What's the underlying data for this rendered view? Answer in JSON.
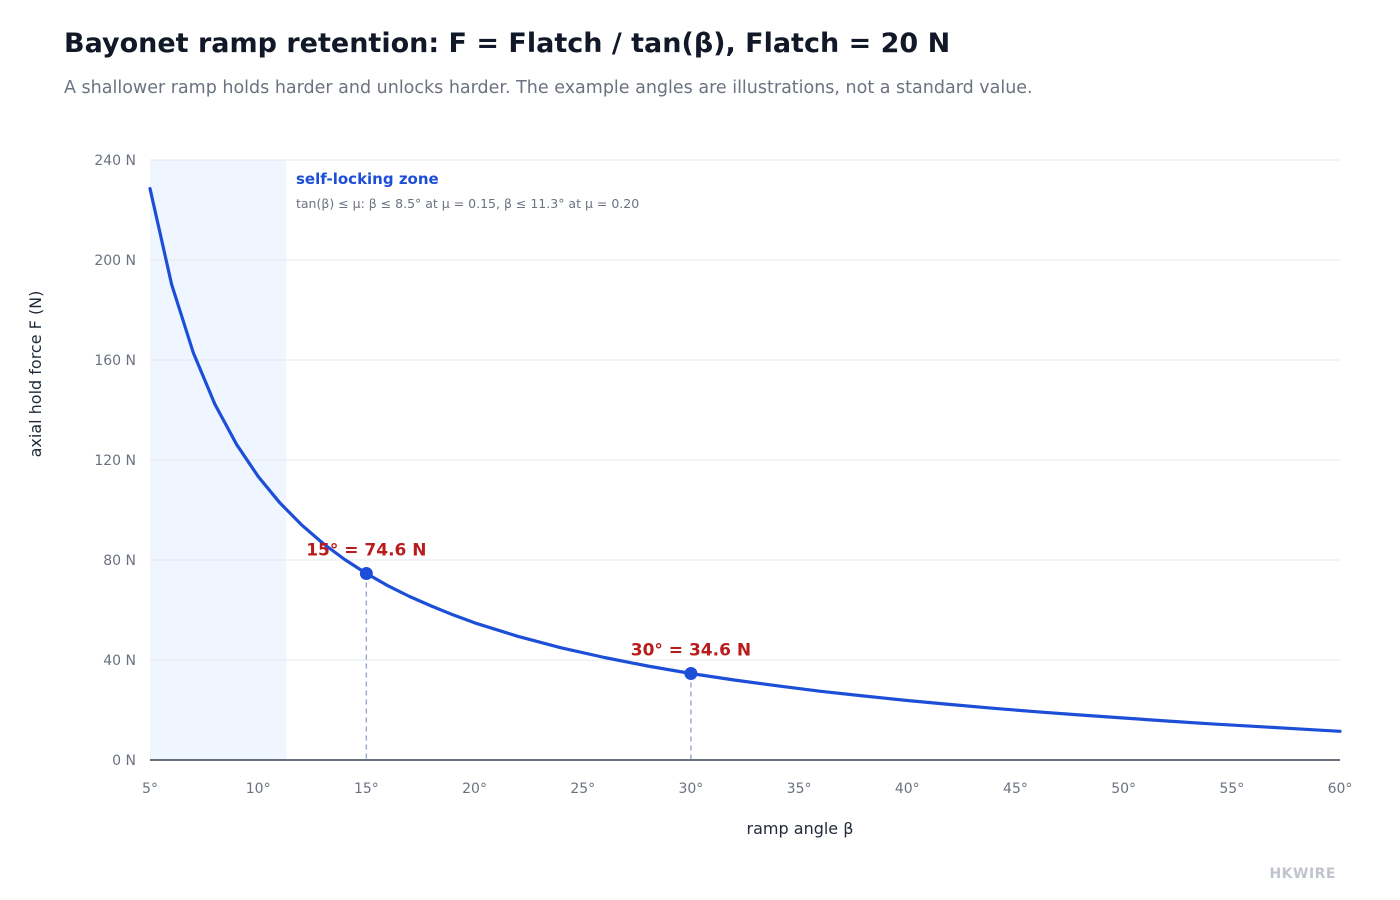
{
  "header": {
    "title": "Bayonet ramp retention: F = Flatch / tan(β), Flatch = 20 N",
    "subtitle": "A shallower ramp holds harder and unlocks harder. The example angles are illustrations, not a standard value."
  },
  "brand": "HKWIRE",
  "chart_data": {
    "type": "line",
    "title": "Bayonet ramp retention: F = Flatch / tan(β), Flatch = 20 N",
    "xlabel": "ramp angle β",
    "ylabel": "axial hold force F (N)",
    "xlim": [
      5,
      60
    ],
    "ylim": [
      0,
      240
    ],
    "x_ticks": [
      5,
      10,
      15,
      20,
      25,
      30,
      35,
      40,
      45,
      50,
      55,
      60
    ],
    "x_tick_labels": [
      "5°",
      "10°",
      "15°",
      "20°",
      "25°",
      "30°",
      "35°",
      "40°",
      "45°",
      "50°",
      "55°",
      "60°"
    ],
    "y_ticks": [
      0,
      40,
      80,
      120,
      160,
      200,
      240
    ],
    "y_tick_labels": [
      "0 N",
      "40 N",
      "80 N",
      "120 N",
      "160 N",
      "200 N",
      "240 N"
    ],
    "grid": true,
    "flatch": 20,
    "series": [
      {
        "x": [
          5,
          6,
          7,
          8,
          9,
          10,
          11,
          12,
          13,
          14,
          15,
          16,
          17,
          18,
          19,
          20,
          22,
          24,
          26,
          28,
          30,
          32,
          34,
          36,
          38,
          40,
          42,
          44,
          46,
          48,
          50,
          52,
          54,
          56,
          58,
          60
        ],
        "values": [
          228.6,
          190.3,
          162.9,
          142.3,
          126.3,
          113.4,
          102.9,
          94.1,
          86.6,
          80.2,
          74.6,
          69.7,
          65.4,
          61.6,
          58.1,
          54.9,
          49.5,
          44.9,
          41.0,
          37.6,
          34.6,
          32.0,
          29.7,
          27.5,
          25.6,
          23.8,
          22.2,
          20.7,
          19.3,
          18.0,
          16.8,
          15.6,
          14.5,
          13.5,
          12.5,
          11.5
        ],
        "color": "#1d4ed8"
      }
    ],
    "shaded_region": {
      "x_range": [
        5,
        11.3
      ],
      "color": "#eff6ff",
      "label": "self-locking zone",
      "note": "tan(β) ≤ μ: β ≤ 8.5° at μ = 0.15, β ≤ 11.3° at μ = 0.20"
    },
    "annotations": [
      {
        "x": 15,
        "y": 74.6,
        "label": "15° = 74.6 N"
      },
      {
        "x": 30,
        "y": 34.6,
        "label": "30° = 34.6 N"
      }
    ],
    "colors": {
      "line": "#1d4ed8",
      "annotation_text": "#b91c1c",
      "annotation_marker": "#1d4ed8",
      "grid": "#e5e7eb",
      "axis": "#374151",
      "dashed_drop": "#93a8c8"
    }
  }
}
